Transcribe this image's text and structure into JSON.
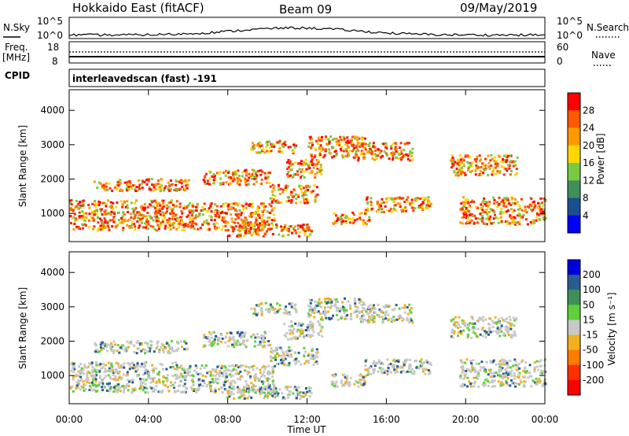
{
  "header": {
    "station": "Hokkaido East (fitACF)",
    "beam": "Beam 09",
    "date": "09/May/2019"
  },
  "strip_panels": {
    "nsky_label": "N.Sky",
    "nsearch_label": "N.Search",
    "freq_label": "Freq.",
    "freq_unit": "[MHz]",
    "nave_label": "Nave",
    "cpid_label": "CPID",
    "cpid_value": "interleavedscan (fast) -191",
    "noise_ticks_left": [
      "10^5",
      "10^0"
    ],
    "noise_ticks_right": [
      "10^5",
      "10^0"
    ],
    "freq_ticks": [
      "18",
      "8"
    ],
    "nave_ticks": [
      "60",
      "0"
    ]
  },
  "chart_data": [
    {
      "type": "heatmap",
      "panel": "power",
      "ylabel": "Slant Range [km]",
      "ylim": [
        180,
        4600
      ],
      "yticks": [
        "1000",
        "2000",
        "3000",
        "4000"
      ],
      "colorbar": {
        "label": "Power [dB]",
        "ticks": [
          "28",
          "24",
          "20",
          "16",
          "12",
          "8",
          "4"
        ],
        "colors": [
          "#ff0000",
          "#ff5a00",
          "#ff9900",
          "#ffd700",
          "#7ac943",
          "#3f8f5a",
          "#1b4f8f",
          "#0000ff"
        ]
      }
    },
    {
      "type": "heatmap",
      "panel": "velocity",
      "ylabel": "Slant Range [km]",
      "ylim": [
        180,
        4600
      ],
      "yticks": [
        "1000",
        "2000",
        "3000",
        "4000"
      ],
      "colorbar": {
        "label": "Velocity [m s⁻¹]",
        "ticks": [
          "200",
          "100",
          "50",
          "15",
          "-15",
          "-50",
          "-100",
          "-200"
        ],
        "colors": [
          "#0000dd",
          "#2a5d8f",
          "#3f8f5a",
          "#5fcf3a",
          "#c8c8c8",
          "#f0b020",
          "#ff7a00",
          "#ff3000",
          "#ff0000"
        ]
      }
    }
  ],
  "xaxis": {
    "label": "Time UT",
    "ticks": [
      "00:00",
      "04:00",
      "08:00",
      "12:00",
      "16:00",
      "20:00",
      "00:00"
    ]
  }
}
